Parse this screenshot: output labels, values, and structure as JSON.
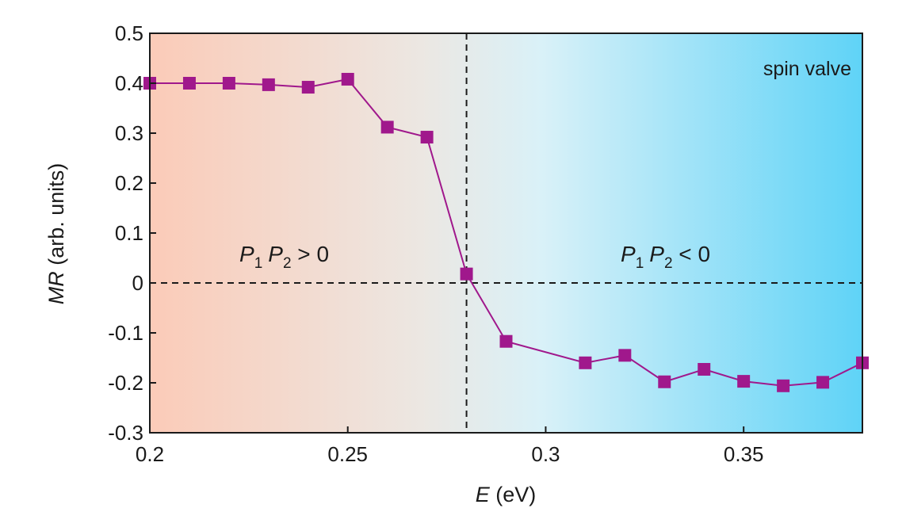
{
  "chart_data": {
    "type": "line",
    "title": "",
    "xlabel": {
      "var": "E",
      "unit": " (eV)"
    },
    "ylabel": {
      "var": "MR",
      "unit": " (arb. units)"
    },
    "xlim": [
      0.2,
      0.38
    ],
    "ylim": [
      -0.3,
      0.5
    ],
    "xticks": [
      0.2,
      0.25,
      0.3,
      0.35
    ],
    "xtick_labels": [
      "0.2",
      "0.25",
      "0.3",
      "0.35"
    ],
    "yticks": [
      -0.3,
      -0.2,
      -0.1,
      0,
      0.1,
      0.2,
      0.3,
      0.4,
      0.5
    ],
    "ytick_labels": [
      "-0.3",
      "-0.2",
      "-0.1",
      "0",
      "0.1",
      "0.2",
      "0.3",
      "0.4",
      "0.5"
    ],
    "grid": false,
    "reference_lines": {
      "horizontal_y": 0,
      "vertical_x": 0.28,
      "style": "dashed"
    },
    "background_gradient": [
      "#fbcbb8",
      "#5fd3f7"
    ],
    "annotations": {
      "region_left": {
        "p1": "P",
        "s1": "1",
        "p2": "P",
        "s2": "2",
        "rel": " > 0"
      },
      "region_right": {
        "p1": "P",
        "s1": "1",
        "p2": "P",
        "s2": "2",
        "rel": " < 0"
      },
      "corner": "spin valve"
    },
    "series": [
      {
        "color": "#a0188c",
        "marker": "square",
        "x": [
          0.2,
          0.21,
          0.22,
          0.23,
          0.24,
          0.25,
          0.26,
          0.27,
          0.28,
          0.29,
          0.31,
          0.32,
          0.33,
          0.34,
          0.35,
          0.36,
          0.37,
          0.38
        ],
        "y": [
          0.4,
          0.4,
          0.4,
          0.397,
          0.392,
          0.408,
          0.312,
          0.292,
          0.018,
          -0.117,
          -0.16,
          -0.145,
          -0.198,
          -0.173,
          -0.197,
          -0.206,
          -0.199,
          -0.16
        ]
      }
    ]
  }
}
